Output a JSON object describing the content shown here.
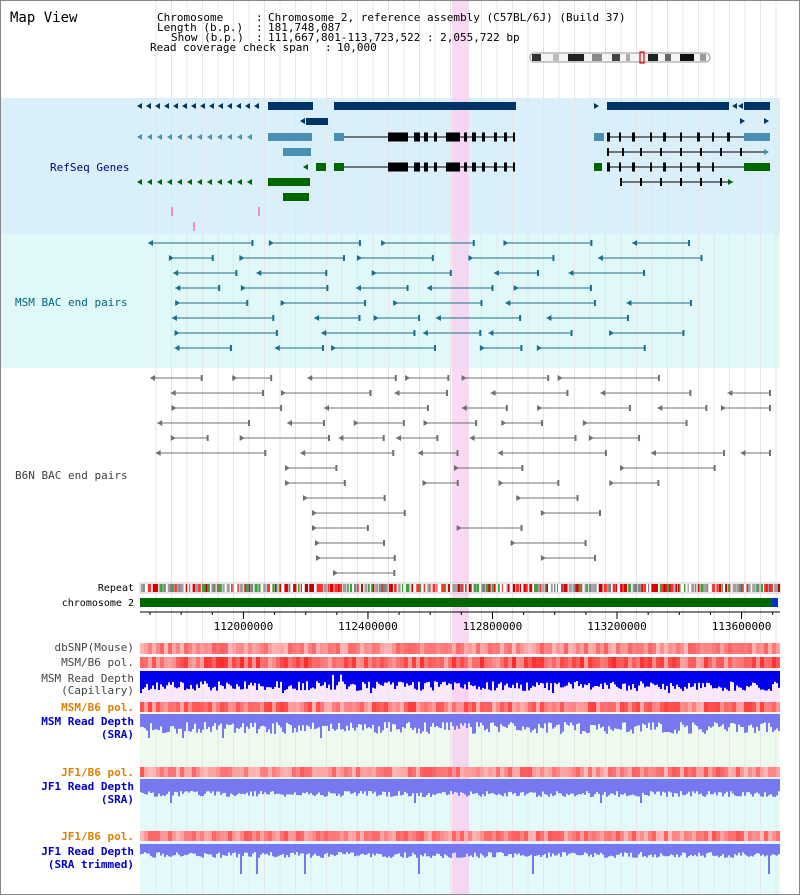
{
  "app": {
    "title": "Map View"
  },
  "info": {
    "chromosome_label": "Chromosome",
    "chromosome_value": "Chromosome 2, reference assembly (C57BL/6J) (Build 37)",
    "length_label": "Length (b.p.)",
    "length_value": "181,748,087",
    "show_label": "Show (b.p.)",
    "show_value": "111,667,801-113,723,522 : 2,055,722 bp",
    "coverage_label": "Read coverage check span",
    "coverage_value": "10,000",
    "separator": ":"
  },
  "tracks": {
    "refseq": {
      "label": "RefSeq Genes",
      "color": "#000080"
    },
    "msm_bac": {
      "label": "MSM BAC end pairs",
      "color": "#006680"
    },
    "b6n_bac": {
      "label": "B6N BAC end pairs",
      "color": "#404040"
    },
    "repeat": {
      "label": "Repeat"
    },
    "chromosome": {
      "label": "chromosome 2"
    },
    "dbsnp": {
      "label": "dbSNP(Mouse)"
    },
    "msm_b6_pol_cap": {
      "label": "MSM/B6 pol."
    },
    "msm_depth_cap": {
      "label1": "MSM Read Depth",
      "label2": "(Capillary)"
    },
    "msm_b6_pol_sra": {
      "label": "MSM/B6 pol.",
      "color": "#e08000"
    },
    "msm_depth_sra": {
      "label1": "MSM Read Depth",
      "label2": "(SRA)",
      "color": "#0000cc"
    },
    "jf1_b6_pol_sra": {
      "label": "JF1/B6 pol.",
      "color": "#e08000"
    },
    "jf1_depth_sra": {
      "label1": "JF1 Read Depth",
      "label2": "(SRA)",
      "color": "#0000cc"
    },
    "jf1_b6_pol_trim": {
      "label": "JF1/B6 pol.",
      "color": "#e08000"
    },
    "jf1_depth_trim": {
      "label1": "JF1 Read Depth",
      "label2": "(SRA trimmed)",
      "color": "#0000cc"
    }
  },
  "ruler": {
    "ticks": [
      {
        "label": "112000000",
        "value": 112000000
      },
      {
        "label": "112400000",
        "value": 112400000
      },
      {
        "label": "112800000",
        "value": 112800000
      },
      {
        "label": "113200000",
        "value": 113200000
      },
      {
        "label": "113600000",
        "value": 113600000
      }
    ]
  },
  "colors": {
    "refseq_bg": "#d9f0fa",
    "msm_bg": "#e0f8f8",
    "highlight": "#f8d0f0",
    "gene_dark": "#003366",
    "gene_teal": "#4a90b0",
    "gene_green": "#006600",
    "bac_teal": "#1a6e8e",
    "bac_gray": "#707070",
    "chrom_green": "#006600",
    "depth_dark": "#0000ee",
    "depth_light": "#7777f0"
  }
}
